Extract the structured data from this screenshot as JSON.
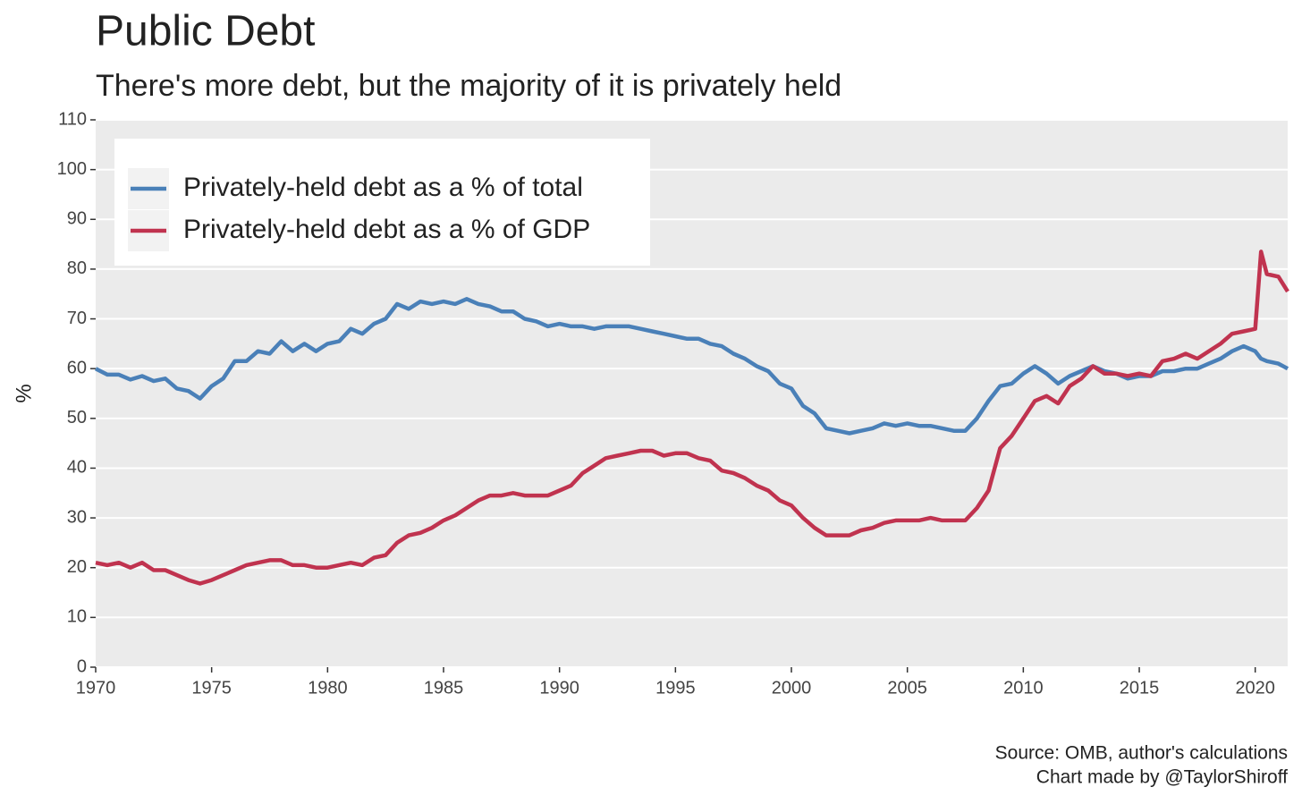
{
  "chart_data": {
    "type": "line",
    "title": "Public Debt",
    "subtitle": "There's more debt, but the majority of it is privately held",
    "ylabel": "%",
    "caption": [
      "Source: OMB, author's calculations",
      "Chart made by @TaylorShiroff"
    ],
    "x": [
      1970,
      1970.5,
      1971,
      1971.5,
      1972,
      1972.5,
      1973,
      1973.5,
      1974,
      1974.5,
      1975,
      1975.5,
      1976,
      1976.5,
      1977,
      1977.5,
      1978,
      1978.5,
      1979,
      1979.5,
      1980,
      1980.5,
      1981,
      1981.5,
      1982,
      1982.5,
      1983,
      1983.5,
      1984,
      1984.5,
      1985,
      1985.5,
      1986,
      1986.5,
      1987,
      1987.5,
      1988,
      1988.5,
      1989,
      1989.5,
      1990,
      1990.5,
      1991,
      1991.5,
      1992,
      1992.5,
      1993,
      1993.5,
      1994,
      1994.5,
      1995,
      1995.5,
      1996,
      1996.5,
      1997,
      1997.5,
      1998,
      1998.5,
      1999,
      1999.5,
      2000,
      2000.5,
      2001,
      2001.5,
      2002,
      2002.5,
      2003,
      2003.5,
      2004,
      2004.5,
      2005,
      2005.5,
      2006,
      2006.5,
      2007,
      2007.5,
      2008,
      2008.5,
      2009,
      2009.5,
      2010,
      2010.5,
      2011,
      2011.5,
      2012,
      2012.5,
      2013,
      2013.5,
      2014,
      2014.5,
      2015,
      2015.5,
      2016,
      2016.5,
      2017,
      2017.5,
      2018,
      2018.5,
      2019,
      2019.5,
      2020,
      2020.25,
      2020.5,
      2021,
      2021.4
    ],
    "series": [
      {
        "name": "Privately-held debt as a % of total",
        "color": "#4a80b8",
        "values": [
          60,
          58.8,
          58.8,
          57.8,
          58.5,
          57.5,
          58,
          56,
          55.5,
          54,
          56.5,
          58,
          61.5,
          61.5,
          63.5,
          63,
          65.5,
          63.5,
          65,
          63.5,
          65,
          65.5,
          68,
          67,
          69,
          70,
          73,
          72,
          73.5,
          73,
          73.5,
          73,
          74,
          73,
          72.5,
          71.5,
          71.5,
          70,
          69.5,
          68.5,
          69,
          68.5,
          68.5,
          68,
          68.5,
          68.5,
          68.5,
          68,
          67.5,
          67,
          66.5,
          66,
          66,
          65,
          64.5,
          63,
          62,
          60.5,
          59.5,
          57,
          56,
          52.5,
          51,
          48,
          47.5,
          47,
          47.5,
          48,
          49,
          48.5,
          49,
          48.5,
          48.5,
          48,
          47.5,
          47.5,
          50,
          53.5,
          56.5,
          57,
          59,
          60.5,
          59,
          57,
          58.5,
          59.5,
          60.5,
          59.5,
          59,
          58,
          58.5,
          58.5,
          59.5,
          59.5,
          60,
          60,
          61,
          62,
          63.5,
          64.5,
          63.5,
          62,
          61.5,
          61,
          60
        ]
      },
      {
        "name": "Privately-held debt as a % of GDP",
        "color": "#c0334f",
        "values": [
          21,
          20.5,
          21,
          20,
          21,
          19.5,
          19.5,
          18.5,
          17.5,
          16.8,
          17.5,
          18.5,
          19.5,
          20.5,
          21,
          21.5,
          21.5,
          20.5,
          20.5,
          20,
          20,
          20.5,
          21,
          20.5,
          22,
          22.5,
          25,
          26.5,
          27,
          28,
          29.5,
          30.5,
          32,
          33.5,
          34.5,
          34.5,
          35,
          34.5,
          34.5,
          34.5,
          35.5,
          36.5,
          39,
          40.5,
          42,
          42.5,
          43,
          43.5,
          43.5,
          42.5,
          43,
          43,
          42,
          41.5,
          39.5,
          39,
          38,
          36.5,
          35.5,
          33.5,
          32.5,
          30,
          28,
          26.5,
          26.5,
          26.5,
          27.5,
          28,
          29,
          29.5,
          29.5,
          29.5,
          30,
          29.5,
          29.5,
          29.5,
          32,
          35.5,
          44,
          46.5,
          50,
          53.5,
          54.5,
          53,
          56.5,
          58,
          60.5,
          59,
          59,
          58.5,
          59,
          58.5,
          61.5,
          62,
          63,
          62,
          63.5,
          65,
          67,
          67.5,
          68,
          83.5,
          79,
          78.5,
          75.5
        ]
      }
    ],
    "xlim": [
      1970,
      2021.4
    ],
    "xticks": [
      1970,
      1975,
      1980,
      1985,
      1990,
      1995,
      2000,
      2005,
      2010,
      2015,
      2020
    ],
    "ylim": [
      0,
      110
    ],
    "yticks": [
      0,
      10,
      20,
      30,
      40,
      50,
      60,
      70,
      80,
      90,
      100,
      110
    ],
    "grid": true,
    "legend": "top-left"
  }
}
